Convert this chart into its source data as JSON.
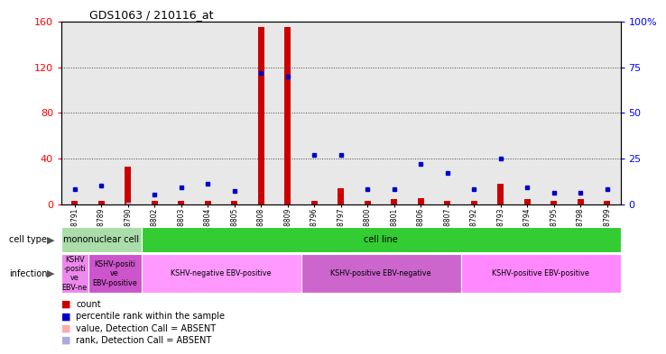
{
  "title": "GDS1063 / 210116_at",
  "samples": [
    "GSM38791",
    "GSM38789",
    "GSM38790",
    "GSM38802",
    "GSM38803",
    "GSM38804",
    "GSM38805",
    "GSM38808",
    "GSM38809",
    "GSM38796",
    "GSM38797",
    "GSM38800",
    "GSM38801",
    "GSM38806",
    "GSM38807",
    "GSM38792",
    "GSM38793",
    "GSM38794",
    "GSM38795",
    "GSM38798",
    "GSM38799"
  ],
  "count_values": [
    3,
    3,
    33,
    3,
    3,
    3,
    3,
    155,
    155,
    3,
    14,
    3,
    4,
    5,
    3,
    3,
    18,
    4,
    3,
    4,
    3
  ],
  "count_absent": [
    false,
    false,
    false,
    false,
    false,
    false,
    false,
    false,
    false,
    false,
    false,
    false,
    false,
    false,
    false,
    false,
    false,
    false,
    false,
    false,
    false
  ],
  "percentile_values": [
    8,
    10,
    0,
    5,
    9,
    11,
    7,
    72,
    70,
    27,
    27,
    8,
    8,
    22,
    17,
    8,
    25,
    9,
    6,
    6,
    8
  ],
  "percentile_absent": [
    false,
    false,
    true,
    false,
    false,
    false,
    false,
    false,
    false,
    false,
    false,
    false,
    false,
    false,
    false,
    false,
    false,
    false,
    false,
    false,
    false
  ],
  "yticks_left": [
    0,
    40,
    80,
    120,
    160
  ],
  "yticks_right": [
    0,
    25,
    50,
    75,
    100
  ],
  "cell_type_groups": [
    {
      "label": "mononuclear cell",
      "start": 0,
      "end": 3,
      "color": "#aaddaa"
    },
    {
      "label": "cell line",
      "start": 3,
      "end": 21,
      "color": "#33cc33"
    }
  ],
  "infection_groups": [
    {
      "label": "KSHV\n-positi\nve\nEBV-ne",
      "start": 0,
      "end": 1,
      "color": "#ee88ee"
    },
    {
      "label": "KSHV-positi\nve\nEBV-positive",
      "start": 1,
      "end": 3,
      "color": "#cc55cc"
    },
    {
      "label": "KSHV-negative EBV-positive",
      "start": 3,
      "end": 9,
      "color": "#ff99ff"
    },
    {
      "label": "KSHV-positive EBV-negative",
      "start": 9,
      "end": 15,
      "color": "#cc66cc"
    },
    {
      "label": "KSHV-positive EBV-positive",
      "start": 15,
      "end": 21,
      "color": "#ff88ff"
    }
  ],
  "legend_items": [
    {
      "label": "count",
      "color": "#cc0000"
    },
    {
      "label": "percentile rank within the sample",
      "color": "#0000cc"
    },
    {
      "label": "value, Detection Call = ABSENT",
      "color": "#ffaaaa"
    },
    {
      "label": "rank, Detection Call = ABSENT",
      "color": "#aaaadd"
    }
  ],
  "count_color": "#cc0000",
  "count_absent_color": "#ffbbbb",
  "percentile_color": "#0000cc",
  "percentile_absent_color": "#aaaadd",
  "chart_bg": "#e8e8e8",
  "xtick_bg": "#cccccc"
}
